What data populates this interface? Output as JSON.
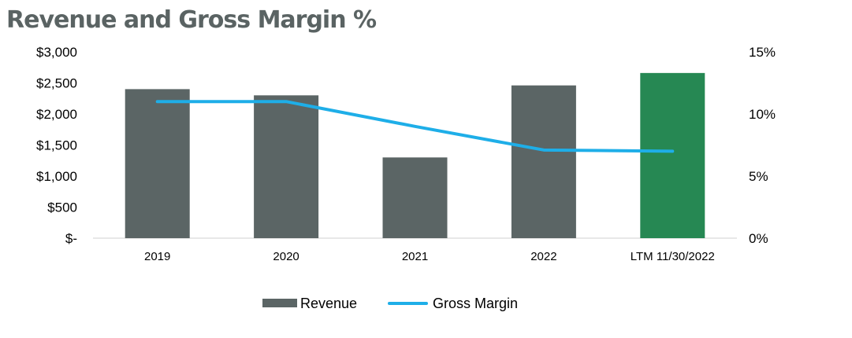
{
  "chart_data": {
    "type": "bar",
    "title": "Revenue and Gross Margin %",
    "categories": [
      "2019",
      "2020",
      "2021",
      "2022",
      "LTM 11/30/2022"
    ],
    "series": [
      {
        "name": "Revenue",
        "type": "bar",
        "axis": "left",
        "color": "#5b6565",
        "highlight_color": "#268853",
        "values": [
          2400,
          2300,
          1300,
          2460,
          2660
        ]
      },
      {
        "name": "Gross Margin",
        "type": "line",
        "axis": "right",
        "color": "#1eaee8",
        "values": [
          11.0,
          11.0,
          9.0,
          7.1,
          7.0
        ]
      }
    ],
    "left_axis": {
      "ylim": [
        0,
        3000
      ],
      "ticks": [
        {
          "value": 0,
          "label": "$-"
        },
        {
          "value": 500,
          "label": "$500"
        },
        {
          "value": 1000,
          "label": "$1,000"
        },
        {
          "value": 1500,
          "label": "$1,500"
        },
        {
          "value": 2000,
          "label": "$2,000"
        },
        {
          "value": 2500,
          "label": "$2,500"
        },
        {
          "value": 3000,
          "label": "$3,000"
        }
      ]
    },
    "right_axis": {
      "ylim": [
        0,
        15
      ],
      "ticks": [
        {
          "value": 0,
          "label": "0%"
        },
        {
          "value": 5,
          "label": "5%"
        },
        {
          "value": 10,
          "label": "10%"
        },
        {
          "value": 15,
          "label": "15%"
        }
      ]
    },
    "grid": false,
    "legend_position": "bottom"
  }
}
